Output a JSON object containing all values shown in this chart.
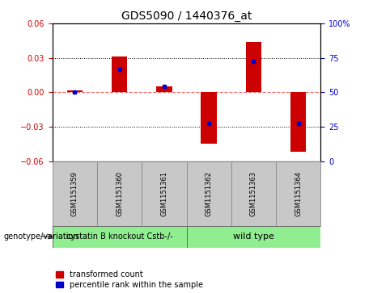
{
  "title": "GDS5090 / 1440376_at",
  "samples": [
    "GSM1151359",
    "GSM1151360",
    "GSM1151361",
    "GSM1151362",
    "GSM1151363",
    "GSM1151364"
  ],
  "red_values": [
    0.002,
    0.031,
    0.005,
    -0.045,
    0.044,
    -0.052
  ],
  "blue_values": [
    0.0,
    0.02,
    0.005,
    -0.027,
    0.027,
    -0.027
  ],
  "ylim": [
    -0.06,
    0.06
  ],
  "yticks": [
    -0.06,
    -0.03,
    0.0,
    0.03,
    0.06
  ],
  "right_yticks": [
    0,
    25,
    50,
    75,
    100
  ],
  "group1_label": "cystatin B knockout Cstb-/-",
  "group2_label": "wild type",
  "group_color": "#90EE90",
  "bar_color_red": "#CC0000",
  "bar_color_blue": "#0000CC",
  "bar_width": 0.35,
  "zero_line_color": "#FF6666",
  "legend_red": "transformed count",
  "legend_blue": "percentile rank within the sample",
  "genotype_label": "genotype/variation",
  "sample_box_color": "#C8C8C8",
  "title_fontsize": 10,
  "tick_fontsize": 7,
  "sample_fontsize": 6,
  "group_fontsize": 7,
  "legend_fontsize": 7
}
